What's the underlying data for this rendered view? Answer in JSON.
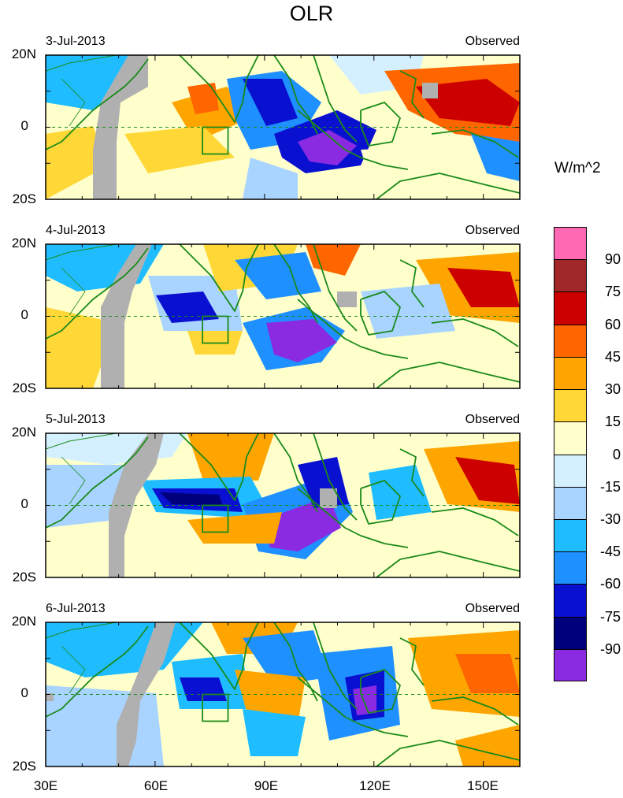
{
  "title": "OLR",
  "panels": [
    {
      "date": "3-Jul-2013",
      "tag": "Observed"
    },
    {
      "date": "4-Jul-2013",
      "tag": "Observed"
    },
    {
      "date": "5-Jul-2013",
      "tag": "Observed"
    },
    {
      "date": "6-Jul-2013",
      "tag": "Observed"
    }
  ],
  "lat_labels": [
    "20N",
    "0",
    "20S"
  ],
  "lon_labels": [
    "30E",
    "60E",
    "90E",
    "120E",
    "150E"
  ],
  "colorbar": {
    "units": "W/m^2",
    "labels": [
      "90",
      "75",
      "60",
      "45",
      "30",
      "15",
      "0",
      "-15",
      "-30",
      "-45",
      "-60",
      "-75",
      "-90"
    ],
    "colors": [
      "#ff69b4",
      "#a02828",
      "#cd0000",
      "#ff6600",
      "#ffa500",
      "#ffd736",
      "#ffffcc",
      "#d4f0ff",
      "#a8d4ff",
      "#1fbdff",
      "#1e90ff",
      "#0a10d0",
      "#00007c",
      "#8a2be2"
    ]
  },
  "colors": {
    "coast": "#1a8a1a",
    "missing": "#b0b0b0",
    "background": "#ffffcc"
  }
}
